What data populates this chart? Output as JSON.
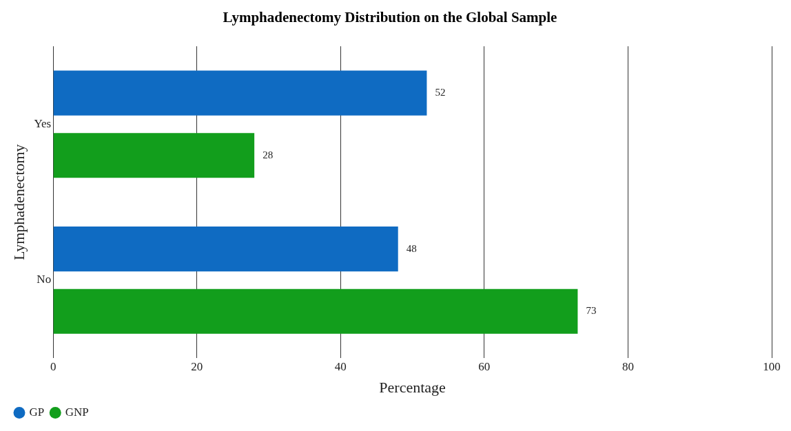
{
  "chart_data": {
    "type": "bar",
    "orientation": "horizontal",
    "title": "Lymphadenectomy Distribution on the Global Sample",
    "xlabel": "Percentage",
    "ylabel": "Lymphadenectomy",
    "categories": [
      "Yes",
      "No"
    ],
    "series": [
      {
        "name": "GP",
        "color": "#0f6bc2",
        "values": [
          52,
          48
        ]
      },
      {
        "name": "GNP",
        "color": "#129e1c",
        "values": [
          28,
          73
        ]
      }
    ],
    "xlim": [
      0,
      100
    ],
    "xticks": [
      0,
      20,
      40,
      60,
      80,
      100
    ],
    "grid": "x",
    "legend": "bottom left",
    "data_labels": true
  }
}
